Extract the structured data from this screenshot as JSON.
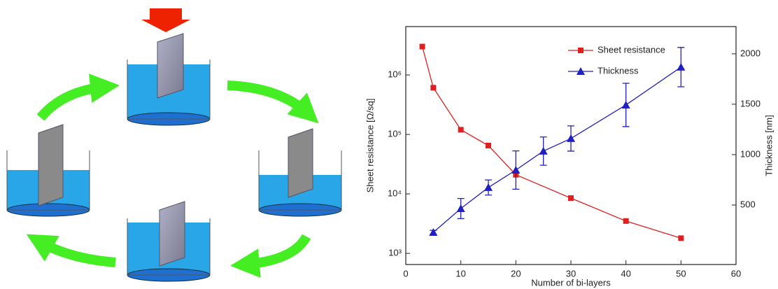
{
  "chart_data": {
    "type": "line",
    "xlabel": "Number of bi-layers",
    "ylabel": "Sheet resistance [Ω/sq]",
    "y2label": "Thickness [nm]",
    "xlim": [
      0,
      60
    ],
    "xticks": [
      0,
      10,
      20,
      30,
      40,
      50,
      60
    ],
    "ylim": [
      650,
      6500000
    ],
    "yscale": "log",
    "yticks": [
      {
        "value": 1000,
        "label": "10³"
      },
      {
        "value": 10000,
        "label": "10⁴"
      },
      {
        "value": 100000,
        "label": "10⁵"
      },
      {
        "value": 1000000,
        "label": "10⁶"
      }
    ],
    "y2lim": [
      -90,
      2270
    ],
    "y2ticks": [
      500,
      1000,
      1500,
      2000
    ],
    "legend": "upper center",
    "series": [
      {
        "name": "Sheet resistance",
        "color": "#e02020",
        "marker": "square",
        "axis": "y",
        "x": [
          3,
          5,
          10,
          15,
          20,
          30,
          40,
          50
        ],
        "values": [
          3000000,
          610000,
          120000,
          65000,
          21000,
          8500,
          3500,
          1800
        ]
      },
      {
        "name": "Thickness",
        "color": "#2020c0",
        "marker": "triangle",
        "axis": "y2",
        "x": [
          5,
          10,
          15,
          20,
          25,
          30,
          40,
          50
        ],
        "values": [
          229,
          465,
          674,
          847,
          1035,
          1160,
          1493,
          1868
        ],
        "errors": [
          20,
          100,
          75,
          190,
          140,
          125,
          215,
          195
        ]
      }
    ]
  }
}
